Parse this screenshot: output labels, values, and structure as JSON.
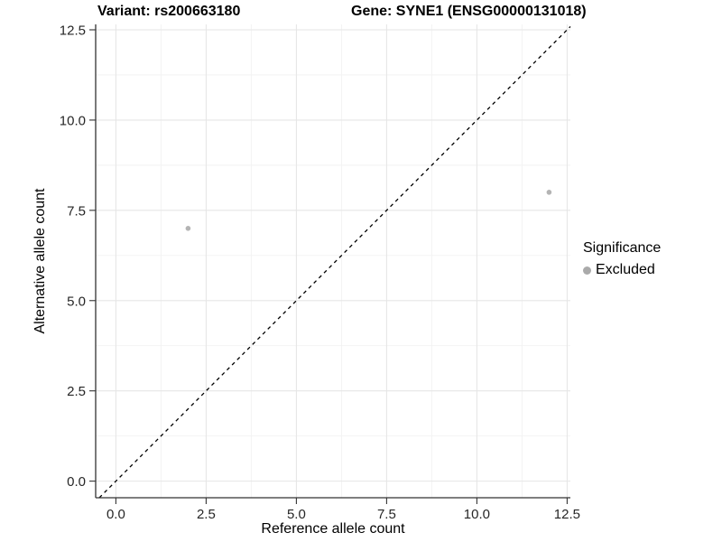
{
  "chart_data": {
    "type": "scatter",
    "titles": {
      "left": "Variant: rs200663180",
      "right": "Gene: SYNE1 (ENSG00000131018)"
    },
    "xlabel": "Reference allele count",
    "ylabel": "Alternative allele count",
    "x_ticks": [
      0.0,
      2.5,
      5.0,
      7.5,
      10.0,
      12.5
    ],
    "y_ticks": [
      0.0,
      2.5,
      5.0,
      7.5,
      10.0,
      12.5
    ],
    "xlim": [
      -0.56,
      12.59
    ],
    "ylim": [
      -0.46,
      12.65
    ],
    "grid": "major_and_minor",
    "points": [
      {
        "x": 2,
        "y": 7,
        "significance": "Excluded"
      },
      {
        "x": 12,
        "y": 8,
        "significance": "Excluded"
      }
    ],
    "reference_line": {
      "style": "dashed",
      "slope": 1,
      "intercept": 0
    },
    "legend": {
      "title": "Significance",
      "position": "right",
      "items": [
        {
          "label": "Excluded",
          "color": "#aaaaaa"
        }
      ]
    },
    "colors": {
      "point": "#b4b4b4",
      "grid_major": "#e6e6e6",
      "grid_minor": "#f2f2f2",
      "axis_line": "#333333",
      "tick_mark": "#333333",
      "tick_label": "#262626",
      "reference_line": "#000000",
      "background": "#ffffff"
    }
  }
}
